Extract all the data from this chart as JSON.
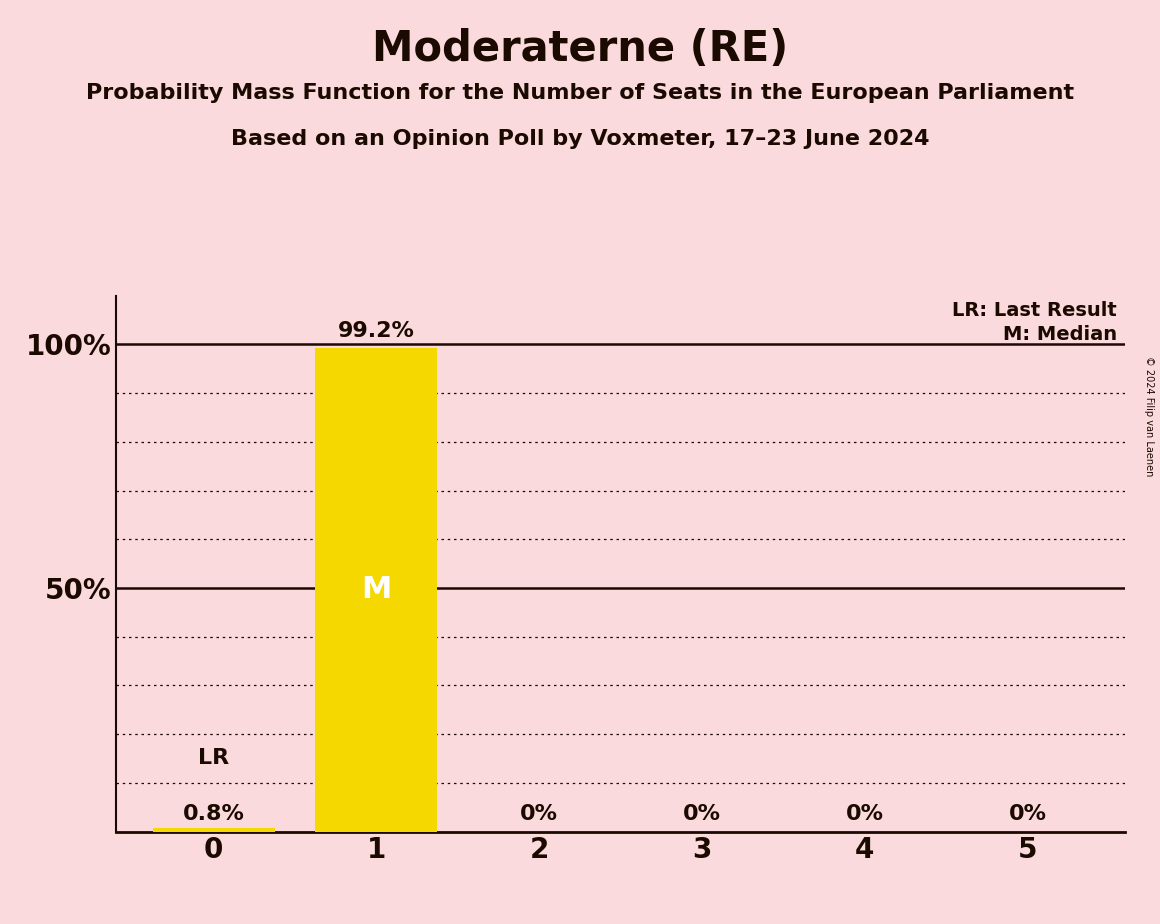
{
  "title": "Moderaterne (RE)",
  "subtitle1": "Probability Mass Function for the Number of Seats in the European Parliament",
  "subtitle2": "Based on an Opinion Poll by Voxmeter, 17–23 June 2024",
  "copyright": "© 2024 Filip van Laenen",
  "categories": [
    0,
    1,
    2,
    3,
    4,
    5
  ],
  "values": [
    0.8,
    99.2,
    0.0,
    0.0,
    0.0,
    0.0
  ],
  "bar_color": "#F5D800",
  "background_color": "#FADADD",
  "text_color": "#1a0a00",
  "median": 1,
  "last_result": 0,
  "legend_lr": "LR: Last Result",
  "legend_m": "M: Median",
  "ylim": [
    0,
    110
  ],
  "bar_width": 0.75,
  "title_fontsize": 30,
  "subtitle_fontsize": 16,
  "tick_fontsize": 20,
  "label_fontsize": 16,
  "legend_fontsize": 14,
  "annotation_fontsize": 22
}
